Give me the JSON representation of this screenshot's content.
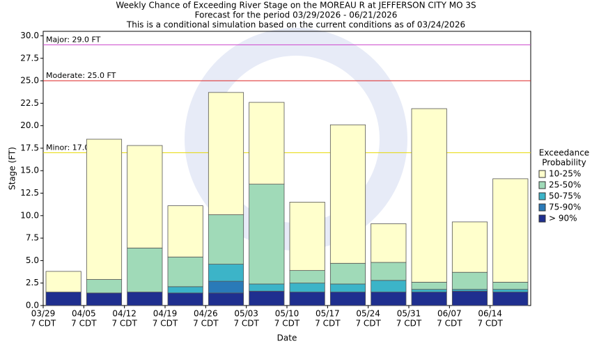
{
  "chart_data": {
    "type": "bar",
    "stacked": true,
    "title": [
      "Weekly Chance of Exceeding River Stage on the MOREAU R at JEFFERSON CITY MO 3S",
      "Forecast for the period 03/29/2026 - 06/21/2026",
      "This is a conditional simulation based on the current conditions as of 03/24/2026"
    ],
    "x_label": "Date",
    "y_label": "Stage (FT)",
    "categories": [
      "03/29",
      "04/05",
      "04/12",
      "04/19",
      "04/26",
      "05/03",
      "05/10",
      "05/17",
      "05/24",
      "05/31",
      "06/07",
      "06/14"
    ],
    "tick_time": "7 CDT",
    "ylim": [
      0,
      30.5
    ],
    "yticks": [
      {
        "value": 0,
        "label": "0.0"
      },
      2.5,
      {
        "value": 5,
        "label": "5.0"
      },
      7.5,
      {
        "value": 10,
        "label": "10.0"
      },
      12.5,
      {
        "value": 15,
        "label": "15.0"
      },
      17.5,
      {
        "value": 20,
        "label": "20.0"
      },
      22.5,
      {
        "value": 25,
        "label": "25.0"
      },
      27.5,
      {
        "value": 30,
        "label": "30.0"
      }
    ],
    "thresholds": [
      {
        "label": "Major: 29.0 FT",
        "value": 29,
        "color": "#cc44cc"
      },
      {
        "label": "Moderate: 25.0 FT",
        "value": 25,
        "color": "#dd2222"
      },
      {
        "label": "Minor: 17.0 FT",
        "value": 17,
        "color": "#e6d800"
      }
    ],
    "legend_title": [
      "Exceedance",
      "Probability"
    ],
    "series": [
      {
        "name": "> 90%",
        "color": "#1f2f8f",
        "values": [
          1.5,
          1.4,
          1.5,
          1.4,
          1.4,
          1.6,
          1.5,
          1.5,
          1.5,
          1.5,
          1.6,
          1.5
        ]
      },
      {
        "name": "75-90%",
        "color": "#2a7ab8",
        "values": [
          0,
          0,
          0,
          0,
          1.3,
          0,
          0,
          0,
          0,
          0,
          0,
          0
        ]
      },
      {
        "name": "50-75%",
        "color": "#3cb4c8",
        "values": [
          0,
          0,
          0,
          0.7,
          1.9,
          0.8,
          1.0,
          0.9,
          1.3,
          0.3,
          0.2,
          0.3
        ]
      },
      {
        "name": "25-50%",
        "color": "#a0dab8",
        "values": [
          0,
          1.5,
          4.9,
          3.3,
          5.5,
          11.1,
          1.4,
          2.3,
          2.0,
          0.8,
          1.9,
          0.8
        ]
      },
      {
        "name": "10-25%",
        "color": "#ffffcc",
        "values": [
          2.3,
          15.6,
          11.4,
          5.7,
          13.6,
          9.1,
          7.6,
          15.4,
          4.3,
          19.3,
          5.6,
          11.5
        ]
      }
    ]
  }
}
